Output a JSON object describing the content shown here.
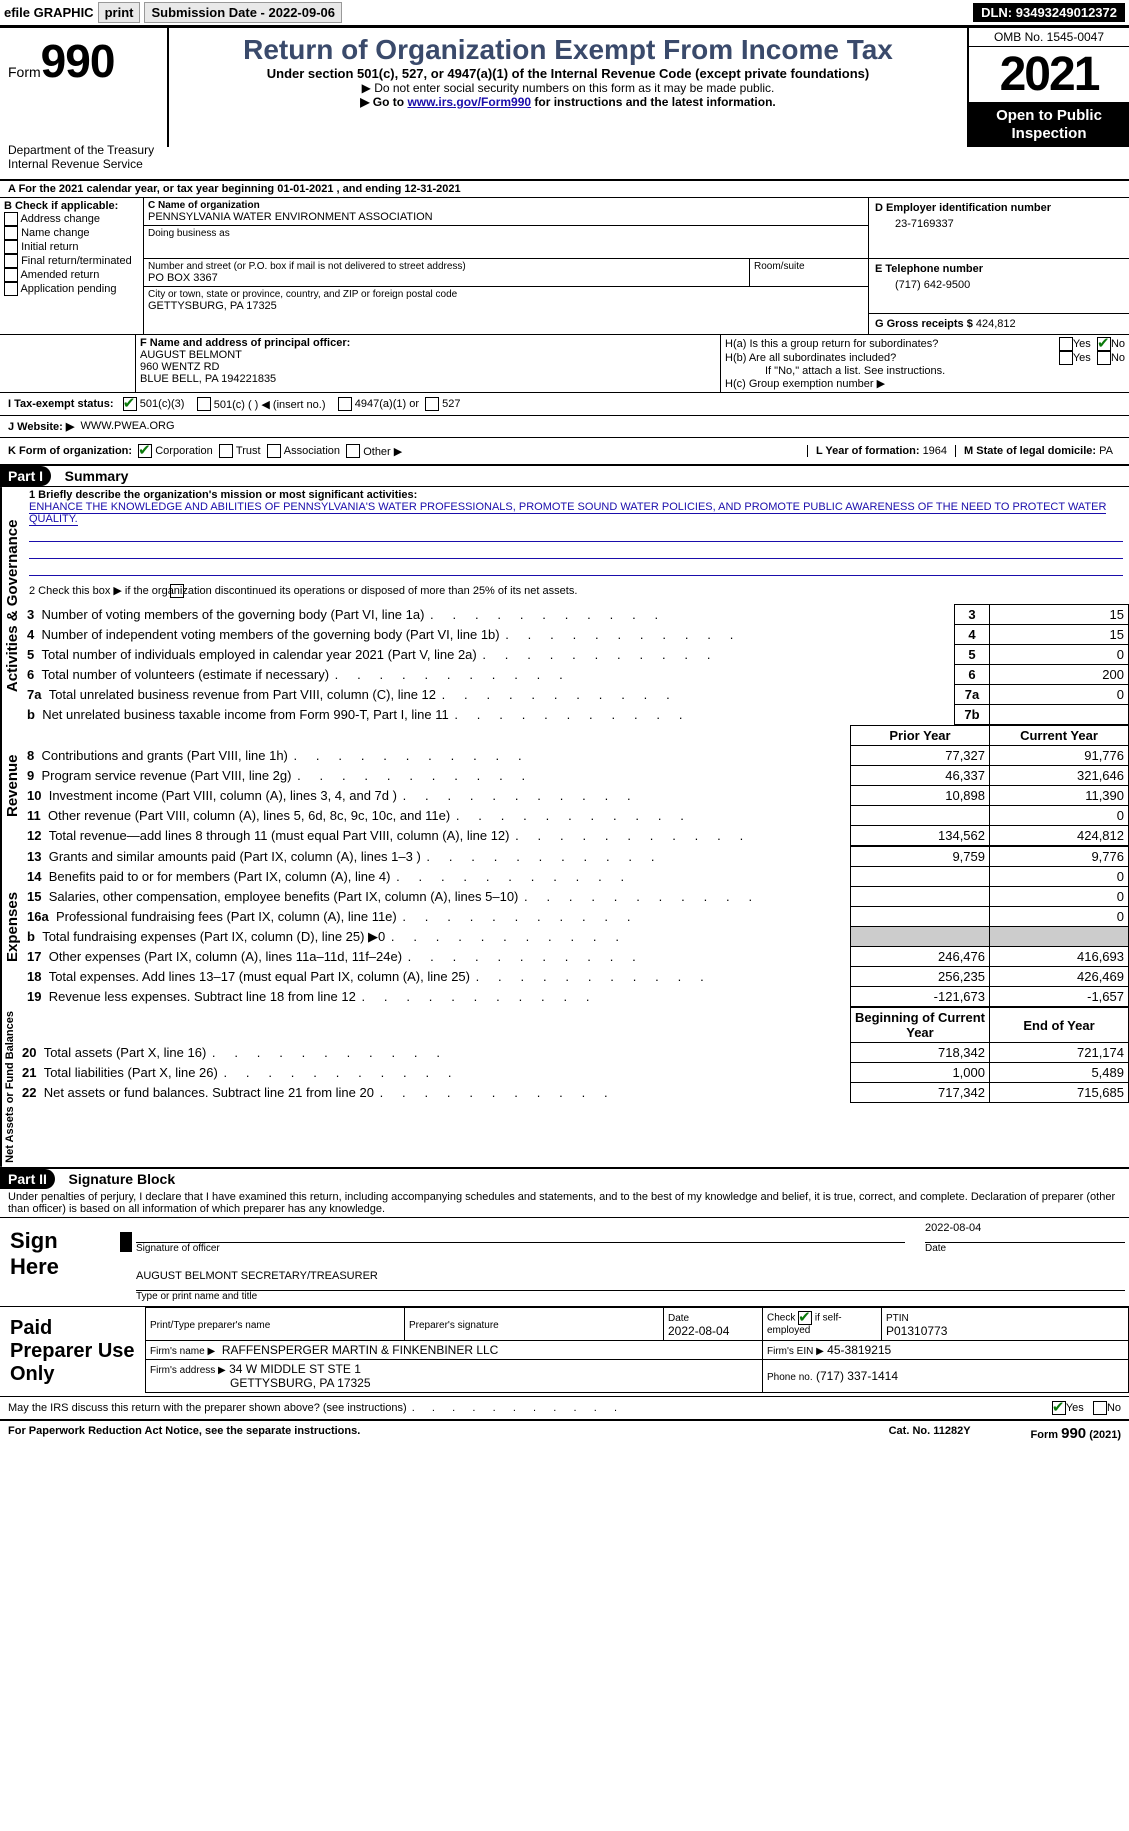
{
  "topbar": {
    "efile": "efile GRAPHIC",
    "print": "print",
    "submission_label": "Submission Date -",
    "submission_date": "2022-09-06",
    "dln_label": "DLN:",
    "dln": "93493249012372"
  },
  "header": {
    "form_word": "Form",
    "form_num": "990",
    "title": "Return of Organization Exempt From Income Tax",
    "sub1": "Under section 501(c), 527, or 4947(a)(1) of the Internal Revenue Code (except private foundations)",
    "sub2a": "▶ Do not enter social security numbers on this form as it may be made public.",
    "sub2b_pre": "▶ Go to ",
    "sub2b_link": "www.irs.gov/Form990",
    "sub2b_post": " for instructions and the latest information.",
    "omb": "OMB No. 1545-0047",
    "year": "2021",
    "open_public_1": "Open to Public",
    "open_public_2": "Inspection",
    "dept1": "Department of the Treasury",
    "dept2": "Internal Revenue Service"
  },
  "lineA": {
    "text_pre": "A For the 2021 calendar year, or tax year beginning ",
    "begin": "01-01-2021",
    "mid": " , and ending ",
    "end": "12-31-2021"
  },
  "B": {
    "label": "B Check if applicable:",
    "opts": [
      "Address change",
      "Name change",
      "Initial return",
      "Final return/terminated",
      "Amended return",
      "Application pending"
    ]
  },
  "C": {
    "label": "C Name of organization",
    "name": "PENNSYLVANIA WATER ENVIRONMENT ASSOCIATION",
    "dba_label": "Doing business as",
    "street_label": "Number and street (or P.O. box if mail is not delivered to street address)",
    "room_label": "Room/suite",
    "street": "PO BOX 3367",
    "city_label": "City or town, state or province, country, and ZIP or foreign postal code",
    "city": "GETTYSBURG, PA  17325"
  },
  "D": {
    "label": "D Employer identification number",
    "value": "23-7169337"
  },
  "E": {
    "label": "E Telephone number",
    "value": "(717) 642-9500"
  },
  "G": {
    "label": "G Gross receipts $",
    "value": "424,812"
  },
  "F": {
    "label": "F Name and address of principal officer:",
    "name": "AUGUST BELMONT",
    "street": "960 WENTZ RD",
    "city": "BLUE BELL, PA  194221835"
  },
  "H": {
    "a": "H(a)  Is this a group return for subordinates?",
    "b": "H(b)  Are all subordinates included?",
    "b_note": "If \"No,\" attach a list. See instructions.",
    "c": "H(c)  Group exemption number ▶",
    "yes": "Yes",
    "no": "No"
  },
  "I": {
    "label": "I  Tax-exempt status:",
    "o1": "501(c)(3)",
    "o2": "501(c) (  ) ◀ (insert no.)",
    "o3": "4947(a)(1) or",
    "o4": "527"
  },
  "J": {
    "label": "J  Website: ▶",
    "value": "WWW.PWEA.ORG"
  },
  "K": {
    "label": "K Form of organization:",
    "o1": "Corporation",
    "o2": "Trust",
    "o3": "Association",
    "o4": "Other ▶"
  },
  "L": {
    "label": "L Year of formation:",
    "value": "1964"
  },
  "M": {
    "label": "M State of legal domicile:",
    "value": "PA"
  },
  "part1": {
    "bar": "Part I",
    "title": "Summary"
  },
  "summary": {
    "l1a": "1  Briefly describe the organization's mission or most significant activities:",
    "l1b": "ENHANCE THE KNOWLEDGE AND ABILITIES OF PENNSYLVANIA'S WATER PROFESSIONALS, PROMOTE SOUND WATER POLICIES, AND PROMOTE PUBLIC AWARENESS OF THE NEED TO PROTECT WATER QUALITY.",
    "l2": "2   Check this box ▶       if the organization discontinued its operations or disposed of more than 25% of its net assets.",
    "rows_gov": [
      {
        "n": "3",
        "label": "Number of voting members of the governing body (Part VI, line 1a)",
        "box": "3",
        "val": "15"
      },
      {
        "n": "4",
        "label": "Number of independent voting members of the governing body (Part VI, line 1b)",
        "box": "4",
        "val": "15"
      },
      {
        "n": "5",
        "label": "Total number of individuals employed in calendar year 2021 (Part V, line 2a)",
        "box": "5",
        "val": "0"
      },
      {
        "n": "6",
        "label": "Total number of volunteers (estimate if necessary)",
        "box": "6",
        "val": "200"
      },
      {
        "n": "7a",
        "label": "Total unrelated business revenue from Part VIII, column (C), line 12",
        "box": "7a",
        "val": "0"
      },
      {
        "n": "b",
        "label": "Net unrelated business taxable income from Form 990-T, Part I, line 11",
        "box": "7b",
        "val": ""
      }
    ],
    "hdr_prior": "Prior Year",
    "hdr_curr": "Current Year",
    "rows_rev": [
      {
        "n": "8",
        "label": "Contributions and grants (Part VIII, line 1h)",
        "py": "77,327",
        "cy": "91,776"
      },
      {
        "n": "9",
        "label": "Program service revenue (Part VIII, line 2g)",
        "py": "46,337",
        "cy": "321,646"
      },
      {
        "n": "10",
        "label": "Investment income (Part VIII, column (A), lines 3, 4, and 7d )",
        "py": "10,898",
        "cy": "11,390"
      },
      {
        "n": "11",
        "label": "Other revenue (Part VIII, column (A), lines 5, 6d, 8c, 9c, 10c, and 11e)",
        "py": "",
        "cy": "0"
      },
      {
        "n": "12",
        "label": "Total revenue—add lines 8 through 11 (must equal Part VIII, column (A), line 12)",
        "py": "134,562",
        "cy": "424,812"
      }
    ],
    "rows_exp": [
      {
        "n": "13",
        "label": "Grants and similar amounts paid (Part IX, column (A), lines 1–3 )",
        "py": "9,759",
        "cy": "9,776"
      },
      {
        "n": "14",
        "label": "Benefits paid to or for members (Part IX, column (A), line 4)",
        "py": "",
        "cy": "0"
      },
      {
        "n": "15",
        "label": "Salaries, other compensation, employee benefits (Part IX, column (A), lines 5–10)",
        "py": "",
        "cy": "0"
      },
      {
        "n": "16a",
        "label": "Professional fundraising fees (Part IX, column (A), line 11e)",
        "py": "",
        "cy": "0"
      },
      {
        "n": "b",
        "label": "Total fundraising expenses (Part IX, column (D), line 25) ▶0",
        "py": "shade",
        "cy": "shade"
      },
      {
        "n": "17",
        "label": "Other expenses (Part IX, column (A), lines 11a–11d, 11f–24e)",
        "py": "246,476",
        "cy": "416,693"
      },
      {
        "n": "18",
        "label": "Total expenses. Add lines 13–17 (must equal Part IX, column (A), line 25)",
        "py": "256,235",
        "cy": "426,469"
      },
      {
        "n": "19",
        "label": "Revenue less expenses. Subtract line 18 from line 12",
        "py": "-121,673",
        "cy": "-1,657"
      }
    ],
    "hdr_beg": "Beginning of Current Year",
    "hdr_end": "End of Year",
    "rows_net": [
      {
        "n": "20",
        "label": "Total assets (Part X, line 16)",
        "py": "718,342",
        "cy": "721,174"
      },
      {
        "n": "21",
        "label": "Total liabilities (Part X, line 26)",
        "py": "1,000",
        "cy": "5,489"
      },
      {
        "n": "22",
        "label": "Net assets or fund balances. Subtract line 21 from line 20",
        "py": "717,342",
        "cy": "715,685"
      }
    ],
    "vert_gov": "Activities & Governance",
    "vert_rev": "Revenue",
    "vert_exp": "Expenses",
    "vert_net": "Net Assets or Fund Balances"
  },
  "part2": {
    "bar": "Part II",
    "title": "Signature Block"
  },
  "sig": {
    "decl": "Under penalties of perjury, I declare that I have examined this return, including accompanying schedules and statements, and to the best of my knowledge and belief, it is true, correct, and complete. Declaration of preparer (other than officer) is based on all information of which preparer has any knowledge.",
    "sign_here": "Sign Here",
    "sig_officer": "Signature of officer",
    "date_label": "Date",
    "date_val": "2022-08-04",
    "name_title": "AUGUST BELMONT  SECRETARY/TREASURER",
    "type_name": "Type or print name and title",
    "paid": "Paid Preparer Use Only",
    "pp_name_label": "Print/Type preparer's name",
    "pp_sig_label": "Preparer's signature",
    "pp_date_label": "Date",
    "pp_date": "2022-08-04",
    "check_if": "Check        if self-employed",
    "ptin_label": "PTIN",
    "ptin": "P01310773",
    "firm_name_label": "Firm's name    ▶",
    "firm_name": "RAFFENSPERGER MARTIN & FINKENBINER LLC",
    "firm_ein_label": "Firm's EIN ▶",
    "firm_ein": "45-3819215",
    "firm_addr_label": "Firm's address ▶",
    "firm_addr1": "34 W MIDDLE ST STE 1",
    "firm_addr2": "GETTYSBURG, PA  17325",
    "phone_label": "Phone no.",
    "phone": "(717) 337-1414",
    "discuss": "May the IRS discuss this return with the preparer shown above? (see instructions)",
    "yes": "Yes",
    "no": "No"
  },
  "footer": {
    "left": "For Paperwork Reduction Act Notice, see the separate instructions.",
    "mid": "Cat. No. 11282Y",
    "right": "Form 990 (2021)"
  }
}
